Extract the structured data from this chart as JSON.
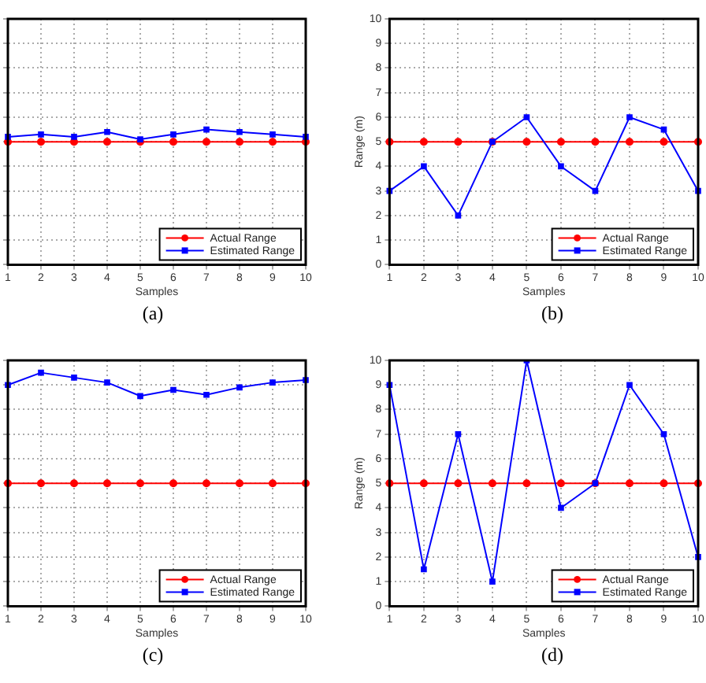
{
  "chart_data": [
    {
      "type": "line",
      "xlabel": "Samples",
      "categories": [
        "1",
        "2",
        "3",
        "4",
        "5",
        "6",
        "7",
        "8",
        "9",
        "10"
      ],
      "ylim": [
        0,
        10
      ],
      "yticks": [
        0,
        1,
        2,
        3,
        4,
        5,
        6,
        7,
        8,
        9,
        10
      ],
      "tick_labels": "x",
      "grid": true,
      "legend": "bottom right",
      "annotations": [
        "(a)"
      ],
      "series": [
        {
          "name": "Actual Range",
          "color": "#ff0000",
          "marker": "circle",
          "values": [
            5,
            5,
            5,
            5,
            5,
            5,
            5,
            5,
            5,
            5
          ]
        },
        {
          "name": "Estimated Range",
          "color": "#0000ff",
          "marker": "square",
          "values": [
            5.2,
            5.3,
            5.2,
            5.4,
            5.1,
            5.3,
            5.5,
            5.4,
            5.3,
            5.2
          ]
        }
      ]
    },
    {
      "type": "line",
      "xlabel": "Samples",
      "ylabel": "Range (m)",
      "categories": [
        "1",
        "2",
        "3",
        "4",
        "5",
        "6",
        "7",
        "8",
        "9",
        "10"
      ],
      "ylim": [
        0,
        10
      ],
      "yticks": [
        0,
        1,
        2,
        3,
        4,
        5,
        6,
        7,
        8,
        9,
        10
      ],
      "grid": true,
      "legend": "bottom right",
      "annotations": [
        "(b)"
      ],
      "series": [
        {
          "name": "Actual Range",
          "color": "#ff0000",
          "marker": "circle",
          "values": [
            5,
            5,
            5,
            5,
            5,
            5,
            5,
            5,
            5,
            5
          ]
        },
        {
          "name": "Estimated Range",
          "color": "#0000ff",
          "marker": "square",
          "values": [
            3,
            4,
            2,
            5,
            6,
            4,
            3,
            6,
            5.5,
            3
          ]
        }
      ]
    },
    {
      "type": "line",
      "xlabel": "Samples",
      "categories": [
        "1",
        "2",
        "3",
        "4",
        "5",
        "6",
        "7",
        "8",
        "9",
        "10"
      ],
      "ylim": [
        0,
        10
      ],
      "yticks": [
        0,
        1,
        2,
        3,
        4,
        5,
        6,
        7,
        8,
        9,
        10
      ],
      "tick_labels": "x",
      "grid": true,
      "legend": "bottom right",
      "annotations": [
        "(c)"
      ],
      "series": [
        {
          "name": "Actual Range",
          "color": "#ff0000",
          "marker": "circle",
          "values": [
            5,
            5,
            5,
            5,
            5,
            5,
            5,
            5,
            5,
            5
          ]
        },
        {
          "name": "Estimated Range",
          "color": "#0000ff",
          "marker": "square",
          "values": [
            9.0,
            9.5,
            9.3,
            9.1,
            8.55,
            8.8,
            8.6,
            8.9,
            9.1,
            9.2
          ]
        }
      ]
    },
    {
      "type": "line",
      "xlabel": "Samples",
      "ylabel": "Range (m)",
      "categories": [
        "1",
        "2",
        "3",
        "4",
        "5",
        "6",
        "7",
        "8",
        "9",
        "10"
      ],
      "ylim": [
        0,
        10
      ],
      "yticks": [
        0,
        1,
        2,
        3,
        4,
        5,
        6,
        7,
        8,
        9,
        10
      ],
      "grid": true,
      "legend": "bottom right",
      "annotations": [
        "(d)"
      ],
      "series": [
        {
          "name": "Actual Range",
          "color": "#ff0000",
          "marker": "circle",
          "values": [
            5,
            5,
            5,
            5,
            5,
            5,
            5,
            5,
            5,
            5
          ]
        },
        {
          "name": "Estimated Range",
          "color": "#0000ff",
          "marker": "square",
          "values": [
            9,
            1.5,
            7,
            1,
            10,
            4,
            5,
            9,
            7,
            2
          ]
        }
      ]
    }
  ]
}
